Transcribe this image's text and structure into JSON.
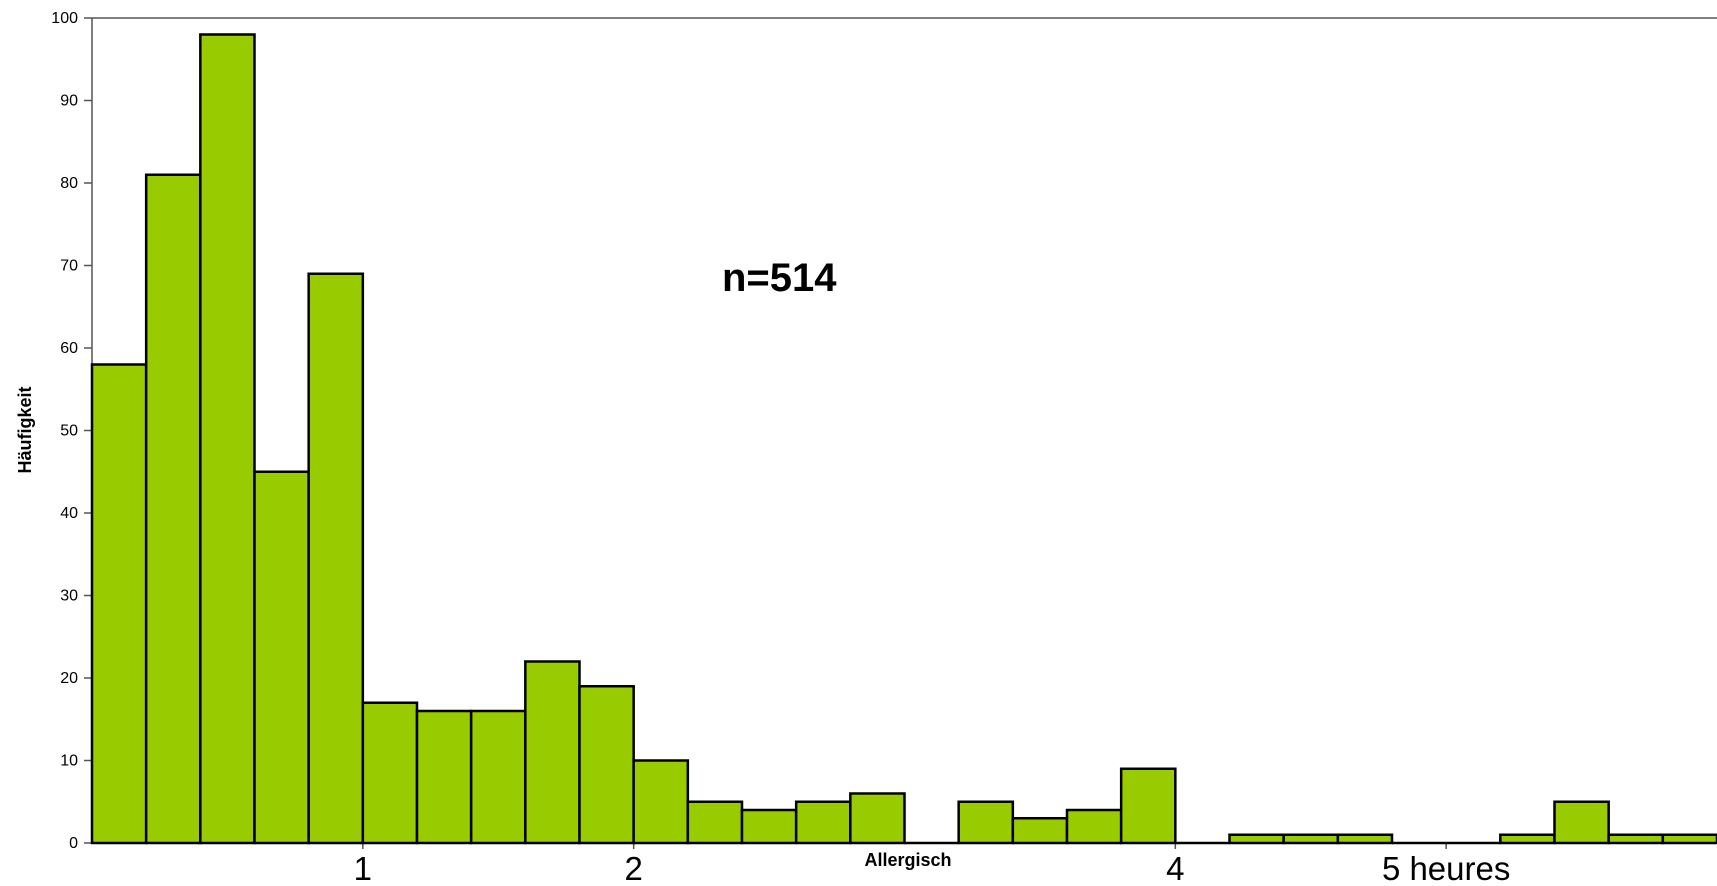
{
  "chart_data": {
    "type": "bar",
    "title": "",
    "xlabel": "Allergisch",
    "ylabel": "Häufigkeit",
    "annotation": "n=514",
    "ylim": [
      0,
      100
    ],
    "y_ticks": [
      0,
      10,
      20,
      30,
      40,
      50,
      60,
      70,
      80,
      90,
      100
    ],
    "x_tick_labels": [
      {
        "label": "1",
        "x": 1
      },
      {
        "label": "2",
        "x": 2
      },
      {
        "label": "4",
        "x": 4
      },
      {
        "label": "5 heures",
        "x": 5
      }
    ],
    "bin_width": 0.2,
    "x_start": 0,
    "values": [
      58,
      81,
      98,
      45,
      69,
      17,
      16,
      16,
      22,
      19,
      10,
      5,
      4,
      5,
      6,
      0,
      5,
      3,
      4,
      9,
      0,
      1,
      1,
      1,
      0,
      0,
      1,
      5,
      1,
      1
    ],
    "bar_color": "#99CC00",
    "edge_color": "#000000",
    "grid": false
  }
}
